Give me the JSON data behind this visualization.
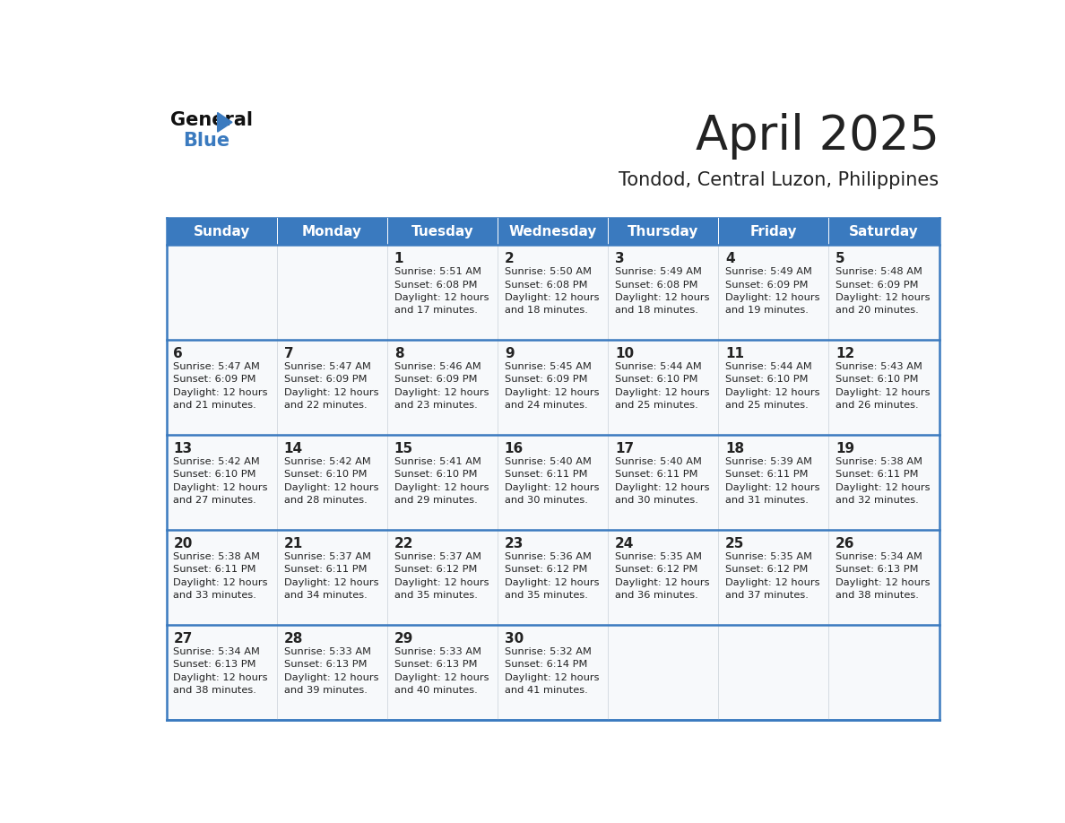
{
  "title": "April 2025",
  "subtitle": "Tondod, Central Luzon, Philippines",
  "header_bg_color": "#3a7abf",
  "header_text_color": "#ffffff",
  "border_color": "#3a7abf",
  "text_color": "#222222",
  "cell_bg_color": "#f7f9fb",
  "days_of_week": [
    "Sunday",
    "Monday",
    "Tuesday",
    "Wednesday",
    "Thursday",
    "Friday",
    "Saturday"
  ],
  "weeks": [
    [
      {
        "day": "",
        "sunrise": "",
        "sunset": "",
        "daylight": ""
      },
      {
        "day": "",
        "sunrise": "",
        "sunset": "",
        "daylight": ""
      },
      {
        "day": "1",
        "sunrise": "5:51 AM",
        "sunset": "6:08 PM",
        "daylight": "12 hours and 17 minutes."
      },
      {
        "day": "2",
        "sunrise": "5:50 AM",
        "sunset": "6:08 PM",
        "daylight": "12 hours and 18 minutes."
      },
      {
        "day": "3",
        "sunrise": "5:49 AM",
        "sunset": "6:08 PM",
        "daylight": "12 hours and 18 minutes."
      },
      {
        "day": "4",
        "sunrise": "5:49 AM",
        "sunset": "6:09 PM",
        "daylight": "12 hours and 19 minutes."
      },
      {
        "day": "5",
        "sunrise": "5:48 AM",
        "sunset": "6:09 PM",
        "daylight": "12 hours and 20 minutes."
      }
    ],
    [
      {
        "day": "6",
        "sunrise": "5:47 AM",
        "sunset": "6:09 PM",
        "daylight": "12 hours and 21 minutes."
      },
      {
        "day": "7",
        "sunrise": "5:47 AM",
        "sunset": "6:09 PM",
        "daylight": "12 hours and 22 minutes."
      },
      {
        "day": "8",
        "sunrise": "5:46 AM",
        "sunset": "6:09 PM",
        "daylight": "12 hours and 23 minutes."
      },
      {
        "day": "9",
        "sunrise": "5:45 AM",
        "sunset": "6:09 PM",
        "daylight": "12 hours and 24 minutes."
      },
      {
        "day": "10",
        "sunrise": "5:44 AM",
        "sunset": "6:10 PM",
        "daylight": "12 hours and 25 minutes."
      },
      {
        "day": "11",
        "sunrise": "5:44 AM",
        "sunset": "6:10 PM",
        "daylight": "12 hours and 25 minutes."
      },
      {
        "day": "12",
        "sunrise": "5:43 AM",
        "sunset": "6:10 PM",
        "daylight": "12 hours and 26 minutes."
      }
    ],
    [
      {
        "day": "13",
        "sunrise": "5:42 AM",
        "sunset": "6:10 PM",
        "daylight": "12 hours and 27 minutes."
      },
      {
        "day": "14",
        "sunrise": "5:42 AM",
        "sunset": "6:10 PM",
        "daylight": "12 hours and 28 minutes."
      },
      {
        "day": "15",
        "sunrise": "5:41 AM",
        "sunset": "6:10 PM",
        "daylight": "12 hours and 29 minutes."
      },
      {
        "day": "16",
        "sunrise": "5:40 AM",
        "sunset": "6:11 PM",
        "daylight": "12 hours and 30 minutes."
      },
      {
        "day": "17",
        "sunrise": "5:40 AM",
        "sunset": "6:11 PM",
        "daylight": "12 hours and 30 minutes."
      },
      {
        "day": "18",
        "sunrise": "5:39 AM",
        "sunset": "6:11 PM",
        "daylight": "12 hours and 31 minutes."
      },
      {
        "day": "19",
        "sunrise": "5:38 AM",
        "sunset": "6:11 PM",
        "daylight": "12 hours and 32 minutes."
      }
    ],
    [
      {
        "day": "20",
        "sunrise": "5:38 AM",
        "sunset": "6:11 PM",
        "daylight": "12 hours and 33 minutes."
      },
      {
        "day": "21",
        "sunrise": "5:37 AM",
        "sunset": "6:11 PM",
        "daylight": "12 hours and 34 minutes."
      },
      {
        "day": "22",
        "sunrise": "5:37 AM",
        "sunset": "6:12 PM",
        "daylight": "12 hours and 35 minutes."
      },
      {
        "day": "23",
        "sunrise": "5:36 AM",
        "sunset": "6:12 PM",
        "daylight": "12 hours and 35 minutes."
      },
      {
        "day": "24",
        "sunrise": "5:35 AM",
        "sunset": "6:12 PM",
        "daylight": "12 hours and 36 minutes."
      },
      {
        "day": "25",
        "sunrise": "5:35 AM",
        "sunset": "6:12 PM",
        "daylight": "12 hours and 37 minutes."
      },
      {
        "day": "26",
        "sunrise": "5:34 AM",
        "sunset": "6:13 PM",
        "daylight": "12 hours and 38 minutes."
      }
    ],
    [
      {
        "day": "27",
        "sunrise": "5:34 AM",
        "sunset": "6:13 PM",
        "daylight": "12 hours and 38 minutes."
      },
      {
        "day": "28",
        "sunrise": "5:33 AM",
        "sunset": "6:13 PM",
        "daylight": "12 hours and 39 minutes."
      },
      {
        "day": "29",
        "sunrise": "5:33 AM",
        "sunset": "6:13 PM",
        "daylight": "12 hours and 40 minutes."
      },
      {
        "day": "30",
        "sunrise": "5:32 AM",
        "sunset": "6:14 PM",
        "daylight": "12 hours and 41 minutes."
      },
      {
        "day": "",
        "sunrise": "",
        "sunset": "",
        "daylight": ""
      },
      {
        "day": "",
        "sunrise": "",
        "sunset": "",
        "daylight": ""
      },
      {
        "day": "",
        "sunrise": "",
        "sunset": "",
        "daylight": ""
      }
    ]
  ],
  "logo_color_general": "#111111",
  "logo_color_blue": "#3a7abf",
  "logo_color_triangle": "#3a7abf"
}
